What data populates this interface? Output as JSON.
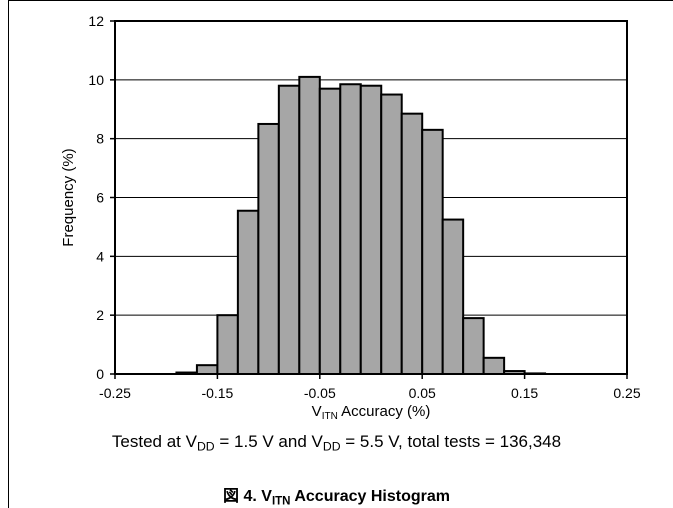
{
  "chart_data": {
    "type": "bar",
    "title": "",
    "xlabel": {
      "main": "V",
      "sub": "ITN",
      "rest": " Accuracy (%)"
    },
    "ylabel": "Frequency (%)",
    "xlim": [
      -0.25,
      0.25
    ],
    "ylim": [
      0,
      12
    ],
    "x_ticks": [
      "-0.25",
      "-0.15",
      "-0.05",
      "0.05",
      "0.15",
      "0.25"
    ],
    "x_tick_values": [
      -0.25,
      -0.15,
      -0.05,
      0.05,
      0.15,
      0.25
    ],
    "y_ticks": [
      "0",
      "2",
      "4",
      "6",
      "8",
      "10",
      "12"
    ],
    "y_tick_values": [
      0,
      2,
      4,
      6,
      8,
      10,
      12
    ],
    "grid": "horizontal",
    "bin_width": 0.02,
    "bin_starts": [
      -0.19,
      -0.17,
      -0.15,
      -0.13,
      -0.11,
      -0.09,
      -0.07,
      -0.05,
      -0.03,
      -0.01,
      0.01,
      0.03,
      0.05,
      0.07,
      0.09,
      0.11,
      0.13,
      0.15
    ],
    "values": [
      0.05,
      0.3,
      2.0,
      5.55,
      8.5,
      9.8,
      10.1,
      9.7,
      9.85,
      9.8,
      9.5,
      8.85,
      8.3,
      5.25,
      1.9,
      0.55,
      0.1,
      0.02
    ],
    "bar_color": "#a6a6a6"
  },
  "caption": {
    "p1": "Tested at V",
    "s1": "DD",
    "p2": " = 1.5 V and V",
    "s2": "DD",
    "p3": " = 5.5 V, total tests = 136,348"
  },
  "figure_title": {
    "prefix": "図 4. V",
    "sub": "ITN",
    "suffix": " Accuracy Histogram"
  }
}
